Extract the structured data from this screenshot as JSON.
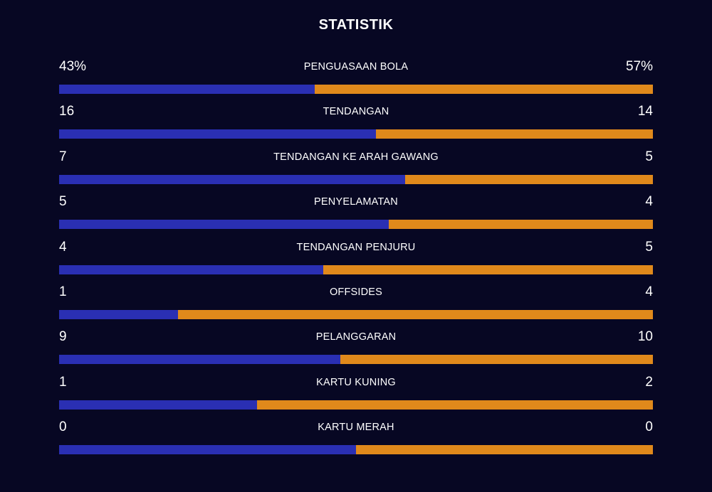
{
  "header": {
    "title": "STATISTIK"
  },
  "colors": {
    "background": "#070723",
    "home": "#2a2fb3",
    "away": "#e0891b",
    "text": "#ffffff"
  },
  "stats": [
    {
      "label": "PENGUASAAN BOLA",
      "left": "43%",
      "right": "57%",
      "left_share": 0.43
    },
    {
      "label": "TENDANGAN",
      "left": "16",
      "right": "14",
      "left_share": 0.5333
    },
    {
      "label": "TENDANGAN KE ARAH GAWANG",
      "left": "7",
      "right": "5",
      "left_share": 0.5833
    },
    {
      "label": "PENYELAMATAN",
      "left": "5",
      "right": "4",
      "left_share": 0.5556
    },
    {
      "label": "TENDANGAN PENJURU",
      "left": "4",
      "right": "5",
      "left_share": 0.4444
    },
    {
      "label": "OFFSIDES",
      "left": "1",
      "right": "4",
      "left_share": 0.2
    },
    {
      "label": "PELANGGARAN",
      "left": "9",
      "right": "10",
      "left_share": 0.4737
    },
    {
      "label": "KARTU KUNING",
      "left": "1",
      "right": "2",
      "left_share": 0.3333
    },
    {
      "label": "KARTU MERAH",
      "left": "0",
      "right": "0",
      "left_share": 0.5
    }
  ]
}
